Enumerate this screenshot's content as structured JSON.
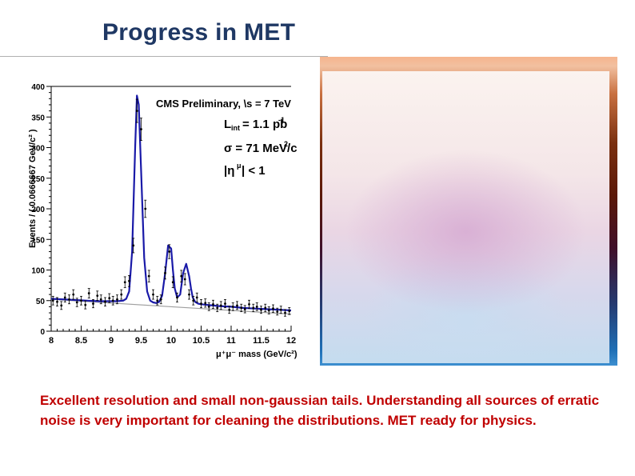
{
  "slide": {
    "title": "Progress in MET",
    "caption": "Excellent resolution and small non-gaussian tails. Understanding all sources of erratic noise is very important for cleaning the distributions. MET ready for physics."
  },
  "colors": {
    "title": "#1f3864",
    "caption": "#c00000",
    "fit": "#1a1aa8",
    "background_fit": "#a0a0a0"
  },
  "chart_data": {
    "type": "scatter",
    "title": "CMS Preliminary, \\s = 7 TeV",
    "annotations": [
      "L",
      "int",
      " = 1.1 pb",
      "-1",
      "σ = 71 MeV/c",
      "2",
      "|η",
      "μ",
      "| < 1"
    ],
    "xlabel": "μ⁺μ⁻ mass (GeV/c²)",
    "ylabel": "Events / ( 0.0666667 GeV/c² )",
    "xlim": [
      8,
      12
    ],
    "ylim": [
      0,
      400
    ],
    "x_ticks": [
      "8",
      "8.5",
      "9",
      "9.5",
      "10",
      "10.5",
      "11",
      "11.5",
      "12"
    ],
    "y_ticks": [
      "0",
      "50",
      "100",
      "150",
      "200",
      "250",
      "300",
      "350",
      "400"
    ],
    "x": [
      8.03,
      8.1,
      8.17,
      8.23,
      8.3,
      8.37,
      8.43,
      8.5,
      8.57,
      8.63,
      8.7,
      8.77,
      8.83,
      8.9,
      8.97,
      9.03,
      9.1,
      9.17,
      9.23,
      9.3,
      9.37,
      9.43,
      9.5,
      9.57,
      9.63,
      9.7,
      9.77,
      9.83,
      9.9,
      9.97,
      10.03,
      10.1,
      10.17,
      10.23,
      10.3,
      10.37,
      10.43,
      10.5,
      10.57,
      10.63,
      10.7,
      10.77,
      10.83,
      10.9,
      10.97,
      11.03,
      11.1,
      11.17,
      11.23,
      11.3,
      11.37,
      11.43,
      11.5,
      11.57,
      11.63,
      11.7,
      11.77,
      11.83,
      11.9,
      11.97
    ],
    "y": [
      50,
      48,
      42,
      55,
      52,
      60,
      47,
      50,
      43,
      62,
      45,
      58,
      52,
      48,
      54,
      50,
      52,
      60,
      80,
      82,
      140,
      360,
      330,
      200,
      90,
      60,
      50,
      52,
      95,
      130,
      80,
      55,
      90,
      85,
      60,
      50,
      55,
      45,
      46,
      40,
      44,
      38,
      42,
      45,
      35,
      40,
      42,
      38,
      36,
      44,
      38,
      40,
      35,
      38,
      34,
      37,
      32,
      35,
      30,
      33
    ],
    "series": [
      {
        "name": "fit",
        "x": [
          8.0,
          8.2,
          8.4,
          8.6,
          8.8,
          9.0,
          9.1,
          9.2,
          9.25,
          9.3,
          9.35,
          9.4,
          9.43,
          9.46,
          9.5,
          9.55,
          9.6,
          9.65,
          9.7,
          9.75,
          9.8,
          9.85,
          9.9,
          9.95,
          10.0,
          10.03,
          10.06,
          10.1,
          10.15,
          10.2,
          10.25,
          10.3,
          10.33,
          10.36,
          10.4,
          10.45,
          10.5,
          10.6,
          10.8,
          11.0,
          11.2,
          11.4,
          11.6,
          11.8,
          12.0
        ],
        "y": [
          53,
          52,
          51,
          50,
          49,
          49,
          49,
          50,
          53,
          65,
          130,
          300,
          385,
          370,
          260,
          120,
          65,
          50,
          47,
          46,
          48,
          58,
          95,
          140,
          135,
          100,
          70,
          55,
          60,
          95,
          110,
          90,
          70,
          55,
          48,
          45,
          44,
          43,
          41,
          40,
          38,
          37,
          36,
          35,
          34
        ]
      },
      {
        "name": "background",
        "x": [
          8.0,
          12.0
        ],
        "y": [
          52,
          28
        ]
      }
    ]
  }
}
